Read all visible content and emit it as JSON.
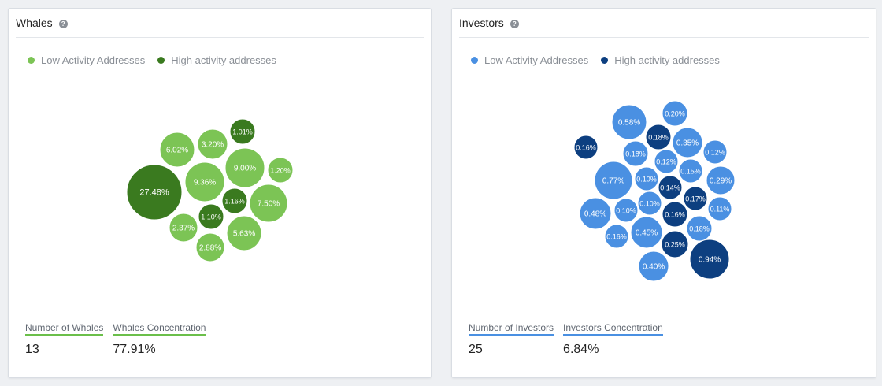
{
  "panels": [
    {
      "title": "Whales",
      "legend": [
        {
          "label": "Low Activity Addresses",
          "color": "#7cc455"
        },
        {
          "label": "High activity addresses",
          "color": "#3a7a1f"
        }
      ],
      "stats": [
        {
          "label": "Number of Whales",
          "value": "13"
        },
        {
          "label": "Whales Concentration",
          "value": "77.91%"
        }
      ]
    },
    {
      "title": "Investors",
      "legend": [
        {
          "label": "Low Activity Addresses",
          "color": "#4a90e2"
        },
        {
          "label": "High activity addresses",
          "color": "#0d3f80"
        }
      ],
      "stats": [
        {
          "label": "Number of Investors",
          "value": "25"
        },
        {
          "label": "Investors Concentration",
          "value": "6.84%"
        }
      ]
    }
  ],
  "chart_data": [
    {
      "type": "bubble",
      "title": "Whales",
      "series_colors": {
        "low": "#7cc455",
        "high": "#3a7a1f"
      },
      "bubbles": [
        {
          "label": "27.48%",
          "value": 27.48,
          "group": "high"
        },
        {
          "label": "6.02%",
          "value": 6.02,
          "group": "low"
        },
        {
          "label": "3.20%",
          "value": 3.2,
          "group": "low"
        },
        {
          "label": "1.01%",
          "value": 1.01,
          "group": "high"
        },
        {
          "label": "9.00%",
          "value": 9.0,
          "group": "low"
        },
        {
          "label": "1.20%",
          "value": 1.2,
          "group": "low"
        },
        {
          "label": "9.36%",
          "value": 9.36,
          "group": "low"
        },
        {
          "label": "1.16%",
          "value": 1.16,
          "group": "high"
        },
        {
          "label": "7.50%",
          "value": 7.5,
          "group": "low"
        },
        {
          "label": "1.10%",
          "value": 1.1,
          "group": "high"
        },
        {
          "label": "2.37%",
          "value": 2.37,
          "group": "low"
        },
        {
          "label": "5.63%",
          "value": 5.63,
          "group": "low"
        },
        {
          "label": "2.88%",
          "value": 2.88,
          "group": "low"
        }
      ]
    },
    {
      "type": "bubble",
      "title": "Investors",
      "series_colors": {
        "low": "#4a90e2",
        "high": "#0d3f80"
      },
      "bubbles": [
        {
          "label": "0.20%",
          "value": 0.2,
          "group": "low"
        },
        {
          "label": "0.58%",
          "value": 0.58,
          "group": "low"
        },
        {
          "label": "0.18%",
          "value": 0.18,
          "group": "high"
        },
        {
          "label": "0.35%",
          "value": 0.35,
          "group": "low"
        },
        {
          "label": "0.16%",
          "value": 0.16,
          "group": "high"
        },
        {
          "label": "0.18%",
          "value": 0.18,
          "group": "low"
        },
        {
          "label": "0.12%",
          "value": 0.12,
          "group": "low"
        },
        {
          "label": "0.12%",
          "value": 0.12,
          "group": "low"
        },
        {
          "label": "0.15%",
          "value": 0.15,
          "group": "low"
        },
        {
          "label": "0.77%",
          "value": 0.77,
          "group": "low"
        },
        {
          "label": "0.10%",
          "value": 0.1,
          "group": "low"
        },
        {
          "label": "0.14%",
          "value": 0.14,
          "group": "high"
        },
        {
          "label": "0.29%",
          "value": 0.29,
          "group": "low"
        },
        {
          "label": "0.17%",
          "value": 0.17,
          "group": "high"
        },
        {
          "label": "0.48%",
          "value": 0.48,
          "group": "low"
        },
        {
          "label": "0.10%",
          "value": 0.1,
          "group": "low"
        },
        {
          "label": "0.10%",
          "value": 0.1,
          "group": "low"
        },
        {
          "label": "0.16%",
          "value": 0.16,
          "group": "high"
        },
        {
          "label": "0.11%",
          "value": 0.11,
          "group": "low"
        },
        {
          "label": "0.16%",
          "value": 0.16,
          "group": "low"
        },
        {
          "label": "0.45%",
          "value": 0.45,
          "group": "low"
        },
        {
          "label": "0.18%",
          "value": 0.18,
          "group": "low"
        },
        {
          "label": "0.25%",
          "value": 0.25,
          "group": "high"
        },
        {
          "label": "0.94%",
          "value": 0.94,
          "group": "high"
        },
        {
          "label": "0.40%",
          "value": 0.4,
          "group": "low"
        }
      ]
    }
  ]
}
